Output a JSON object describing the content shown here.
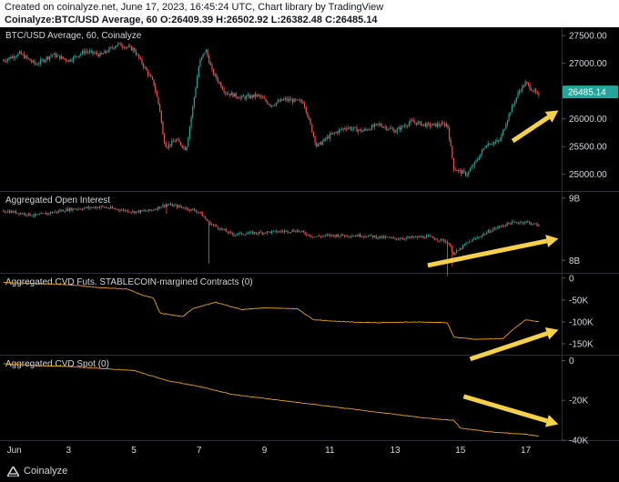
{
  "header": {
    "line1": "Created on coinalyze.net, June 17, 2023, 16:45:24 UTC, Chart library by TradingView",
    "symbol": "Coinalyze:BTC/USD Average, 60",
    "o_label": "O:",
    "o_value": "26409.39",
    "h_label": "H:",
    "h_value": "26502.92",
    "l_label": "L:",
    "l_value": "26382.48",
    "c_label": "C:",
    "c_value": "26485.14"
  },
  "footer": {
    "brand": "Coinalyze"
  },
  "colors": {
    "bull": "#26a69a",
    "bear": "#ef5350",
    "cvd": "#e8a317",
    "arrow": "#f5d14b",
    "price_badge": "#26a69a"
  },
  "chart_data": [
    {
      "type": "candlestick",
      "title": "BTC/USD Average, 60, Coinalyze",
      "ylim": [
        24700,
        27650
      ],
      "yticks": [
        "27500.00",
        "27000.00",
        "26500.00",
        "26000.00",
        "25500.00",
        "25000.00"
      ],
      "ytick_values": [
        27500,
        27000,
        26500,
        26000,
        25500,
        25000
      ],
      "last_price": 26485.14,
      "last_price_label": "26485.14",
      "path": [
        [
          1,
          27050
        ],
        [
          1.5,
          27180
        ],
        [
          2,
          26980
        ],
        [
          2.5,
          27160
        ],
        [
          3,
          27050
        ],
        [
          3.5,
          27220
        ],
        [
          4,
          27150
        ],
        [
          4.5,
          27350
        ],
        [
          5,
          27250
        ],
        [
          5.4,
          26850
        ],
        [
          5.6,
          26650
        ],
        [
          5.8,
          26150
        ],
        [
          5.9,
          25650
        ],
        [
          6,
          25500
        ],
        [
          6.3,
          25620
        ],
        [
          6.6,
          25450
        ],
        [
          6.8,
          26200
        ],
        [
          7,
          27000
        ],
        [
          7.2,
          27250
        ],
        [
          7.4,
          26850
        ],
        [
          7.8,
          26480
        ],
        [
          8.3,
          26380
        ],
        [
          8.8,
          26420
        ],
        [
          9.2,
          26250
        ],
        [
          9.6,
          26350
        ],
        [
          10.2,
          26300
        ],
        [
          10.6,
          25500
        ],
        [
          11,
          25700
        ],
        [
          11.5,
          25850
        ],
        [
          12,
          25780
        ],
        [
          12.5,
          25900
        ],
        [
          13,
          25780
        ],
        [
          13.5,
          25950
        ],
        [
          14,
          25880
        ],
        [
          14.6,
          25900
        ],
        [
          14.8,
          25100
        ],
        [
          15.2,
          25000
        ],
        [
          15.5,
          25250
        ],
        [
          15.8,
          25550
        ],
        [
          16.2,
          25600
        ],
        [
          16.5,
          26100
        ],
        [
          16.8,
          26500
        ],
        [
          17,
          26650
        ],
        [
          17.4,
          26400
        ]
      ],
      "annotations": [
        {
          "type": "arrow",
          "from": [
            16.6,
            25600
          ],
          "to": [
            18.0,
            26150
          ]
        }
      ]
    },
    {
      "type": "candlestick",
      "title": "Aggregated Open Interest",
      "ylim": [
        7.8,
        9.1
      ],
      "yticks": [
        "9B",
        "8B"
      ],
      "ytick_values": [
        9.0,
        8.0
      ],
      "path": [
        [
          1,
          8.8
        ],
        [
          2,
          8.72
        ],
        [
          3,
          8.82
        ],
        [
          4,
          8.86
        ],
        [
          5,
          8.78
        ],
        [
          5.5,
          8.8
        ],
        [
          6,
          8.9
        ],
        [
          6.5,
          8.85
        ],
        [
          7,
          8.78
        ],
        [
          7.3,
          8.6
        ],
        [
          8,
          8.42
        ],
        [
          9,
          8.45
        ],
        [
          10,
          8.48
        ],
        [
          10.5,
          8.38
        ],
        [
          11,
          8.4
        ],
        [
          12,
          8.4
        ],
        [
          13,
          8.35
        ],
        [
          14,
          8.38
        ],
        [
          14.6,
          8.3
        ],
        [
          14.8,
          8.1
        ],
        [
          15.2,
          8.28
        ],
        [
          16,
          8.5
        ],
        [
          16.5,
          8.6
        ],
        [
          17,
          8.62
        ],
        [
          17.4,
          8.56
        ]
      ],
      "annotations": [
        {
          "type": "arrow",
          "from": [
            14.0,
            7.92
          ],
          "to": [
            18.0,
            8.35
          ]
        }
      ]
    },
    {
      "type": "line",
      "title": "Aggregated CVD Futs. STABLECOIN-margined Contracts (0)",
      "ylim": [
        -175000,
        10000
      ],
      "yticks": [
        "0",
        "-50K",
        "-100K",
        "-150K"
      ],
      "ytick_values": [
        0,
        -50000,
        -100000,
        -150000
      ],
      "series": [
        {
          "values": [
            [
              1,
              -10000
            ],
            [
              2,
              -12000
            ],
            [
              3,
              -15000
            ],
            [
              4,
              -22000
            ],
            [
              4.8,
              -25000
            ],
            [
              5.3,
              -40000
            ],
            [
              5.6,
              -45000
            ],
            [
              5.8,
              -80000
            ],
            [
              6.5,
              -88000
            ],
            [
              6.8,
              -70000
            ],
            [
              7.5,
              -55000
            ],
            [
              8.3,
              -72000
            ],
            [
              9,
              -68000
            ],
            [
              10,
              -70000
            ],
            [
              10.5,
              -95000
            ],
            [
              11.5,
              -100000
            ],
            [
              12.5,
              -102000
            ],
            [
              13.5,
              -100000
            ],
            [
              14.6,
              -102000
            ],
            [
              14.8,
              -135000
            ],
            [
              15.5,
              -140000
            ],
            [
              16.3,
              -138000
            ],
            [
              16.6,
              -118000
            ],
            [
              17,
              -95000
            ],
            [
              17.4,
              -100000
            ]
          ]
        }
      ],
      "annotations": [
        {
          "type": "arrow",
          "from": [
            15.3,
            -185000
          ],
          "to": [
            18.0,
            -118000
          ]
        }
      ]
    },
    {
      "type": "line",
      "title": "Aggregated CVD Spot (0)",
      "ylim": [
        -40000,
        2500
      ],
      "yticks": [
        "0",
        "-20K",
        "-40K"
      ],
      "ytick_values": [
        0,
        -20000,
        -40000
      ],
      "xticks": [
        "Jun",
        "3",
        "5",
        "7",
        "9",
        "11",
        "13",
        "15",
        "17"
      ],
      "xtick_values": [
        1,
        3,
        5,
        7,
        9,
        11,
        13,
        15,
        17
      ],
      "xlim": [
        0.9,
        18.1
      ],
      "series": [
        {
          "values": [
            [
              1,
              -1500
            ],
            [
              2,
              -2500
            ],
            [
              3,
              -3000
            ],
            [
              4,
              -4000
            ],
            [
              5,
              -5000
            ],
            [
              6,
              -10000
            ],
            [
              7,
              -13000
            ],
            [
              8,
              -17000
            ],
            [
              9,
              -19000
            ],
            [
              10,
              -21000
            ],
            [
              11,
              -23000
            ],
            [
              12,
              -25000
            ],
            [
              13,
              -27000
            ],
            [
              14,
              -29000
            ],
            [
              14.8,
              -30000
            ],
            [
              15,
              -34000
            ],
            [
              16,
              -36000
            ],
            [
              17,
              -37000
            ],
            [
              17.4,
              -38000
            ]
          ]
        }
      ],
      "annotations": [
        {
          "type": "arrow",
          "from": [
            15.1,
            -18000
          ],
          "to": [
            18.0,
            -32000
          ]
        }
      ]
    }
  ]
}
